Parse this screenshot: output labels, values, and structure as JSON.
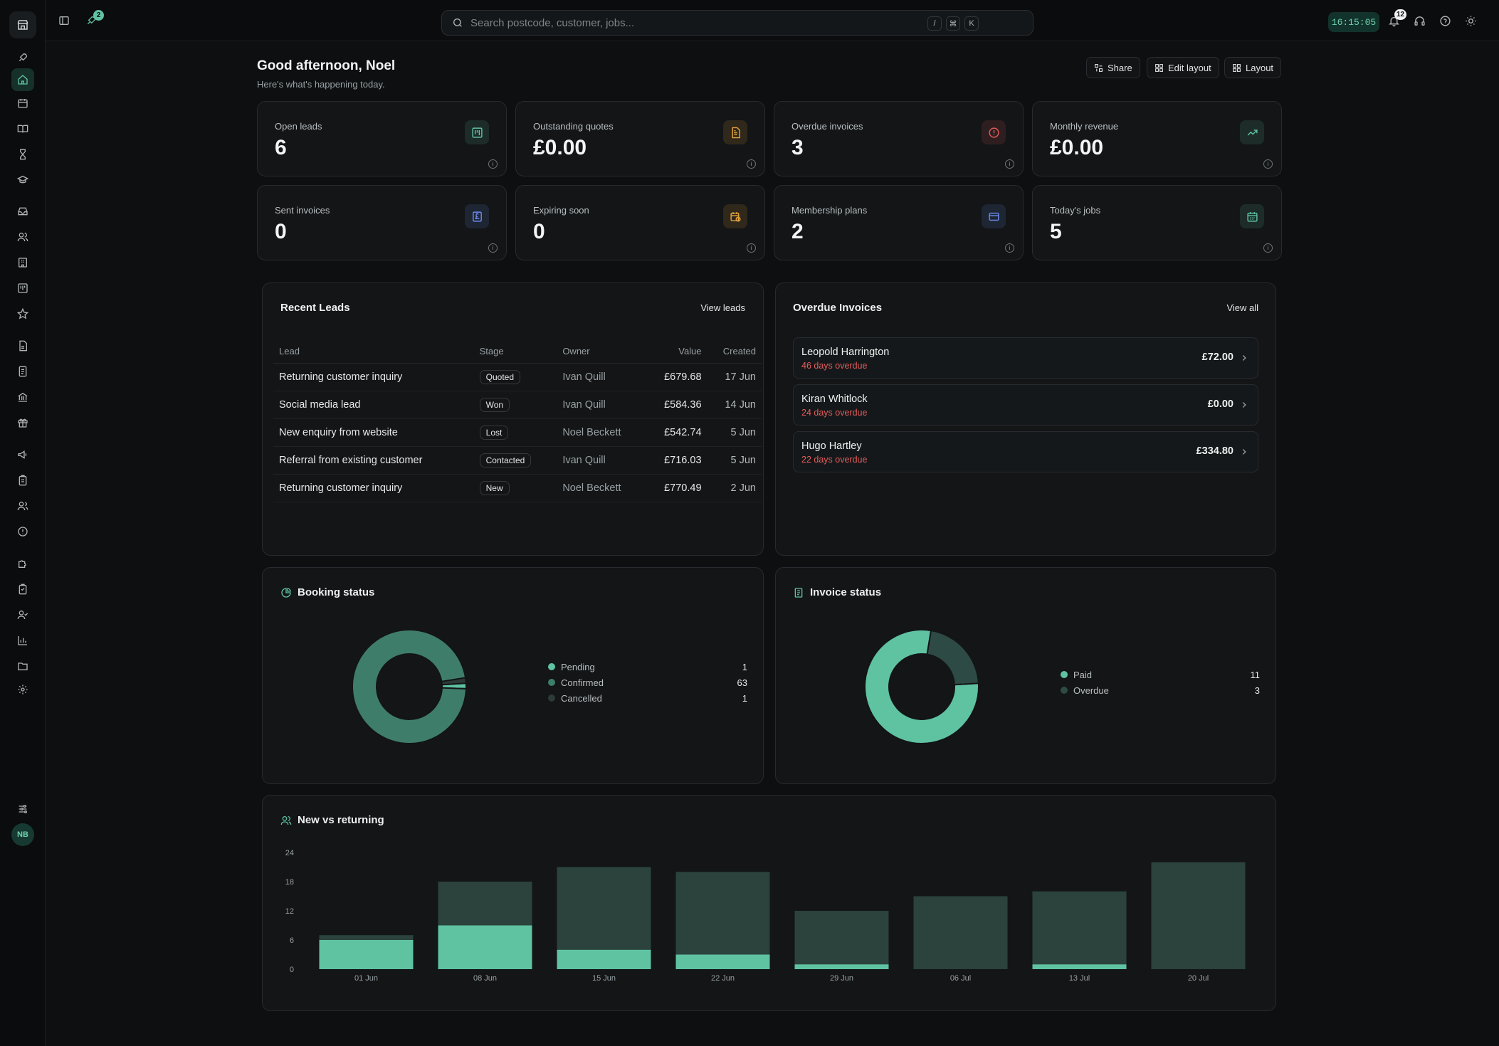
{
  "topbar": {
    "rocket_badge": "2",
    "search_placeholder": "Search postcode, customer, jobs...",
    "kbd": [
      "/",
      "⌘",
      "K"
    ],
    "clock": "16:15:05",
    "notifications_badge": "12"
  },
  "sidebar": {
    "avatar_initials": "NB"
  },
  "header": {
    "greeting": "Good afternoon, Noel",
    "subtitle": "Here's what's happening today.",
    "buttons": {
      "share": "Share",
      "edit_layout": "Edit layout",
      "layout": "Layout"
    }
  },
  "kpis": [
    {
      "label": "Open leads",
      "value": "6",
      "icon": "kanban-icon",
      "color": "#5fc3a2"
    },
    {
      "label": "Outstanding quotes",
      "value": "£0.00",
      "icon": "document-icon",
      "color": "#e8a33d"
    },
    {
      "label": "Overdue invoices",
      "value": "3",
      "icon": "alert-icon",
      "color": "#e25c5c"
    },
    {
      "label": "Monthly revenue",
      "value": "£0.00",
      "icon": "trending-up-icon",
      "color": "#5fc3a2"
    },
    {
      "label": "Sent invoices",
      "value": "0",
      "icon": "pound-receipt-icon",
      "color": "#6c8cf0"
    },
    {
      "label": "Expiring soon",
      "value": "0",
      "icon": "calendar-clock-icon",
      "color": "#e8a33d"
    },
    {
      "label": "Membership plans",
      "value": "2",
      "icon": "card-icon",
      "color": "#6c8cf0"
    },
    {
      "label": "Today's jobs",
      "value": "5",
      "icon": "calendar-icon",
      "color": "#5fc3a2"
    }
  ],
  "recent_leads": {
    "title": "Recent Leads",
    "link": "View leads",
    "columns": [
      "Lead",
      "Stage",
      "Owner",
      "Value",
      "Created"
    ],
    "rows": [
      {
        "lead": "Returning customer inquiry",
        "stage": "Quoted",
        "owner": "Ivan Quill",
        "value": "£679.68",
        "created": "17 Jun"
      },
      {
        "lead": "Social media lead",
        "stage": "Won",
        "owner": "Ivan Quill",
        "value": "£584.36",
        "created": "14 Jun"
      },
      {
        "lead": "New enquiry from website",
        "stage": "Lost",
        "owner": "Noel Beckett",
        "value": "£542.74",
        "created": "5 Jun"
      },
      {
        "lead": "Referral from existing customer",
        "stage": "Contacted",
        "owner": "Ivan Quill",
        "value": "£716.03",
        "created": "5 Jun"
      },
      {
        "lead": "Returning customer inquiry",
        "stage": "New",
        "owner": "Noel Beckett",
        "value": "£770.49",
        "created": "2 Jun"
      }
    ]
  },
  "overdue_invoices": {
    "title": "Overdue Invoices",
    "link": "View all",
    "items": [
      {
        "name": "Leopold Harrington",
        "overdue": "46 days overdue",
        "amount": "£72.00"
      },
      {
        "name": "Kiran Whitlock",
        "overdue": "24 days overdue",
        "amount": "£0.00"
      },
      {
        "name": "Hugo Hartley",
        "overdue": "22 days overdue",
        "amount": "£334.80"
      }
    ]
  },
  "chart_data": [
    {
      "type": "pie",
      "title": "Booking status",
      "categories": [
        "Pending",
        "Confirmed",
        "Cancelled"
      ],
      "values": [
        1,
        63,
        1
      ],
      "colors": [
        "#5fc3a2",
        "#3f7d6b",
        "#2c3b38"
      ]
    },
    {
      "type": "pie",
      "title": "Invoice status",
      "categories": [
        "Paid",
        "Overdue"
      ],
      "values": [
        11,
        3
      ],
      "colors": [
        "#5fc3a2",
        "#2e4a44"
      ]
    },
    {
      "type": "bar",
      "title": "New vs returning",
      "categories": [
        "01 Jun",
        "08 Jun",
        "15 Jun",
        "22 Jun",
        "29 Jun",
        "06 Jul",
        "13 Jul",
        "20 Jul"
      ],
      "series": [
        {
          "values": [
            6,
            9,
            4,
            3,
            1,
            0,
            1,
            0
          ],
          "color": "#5fc3a2"
        },
        {
          "values": [
            1,
            9,
            17,
            17,
            11,
            15,
            15,
            22
          ],
          "color": "#2b423d"
        }
      ],
      "ylim": [
        0,
        24
      ],
      "yticks": [
        0,
        6,
        12,
        18,
        24
      ]
    }
  ]
}
